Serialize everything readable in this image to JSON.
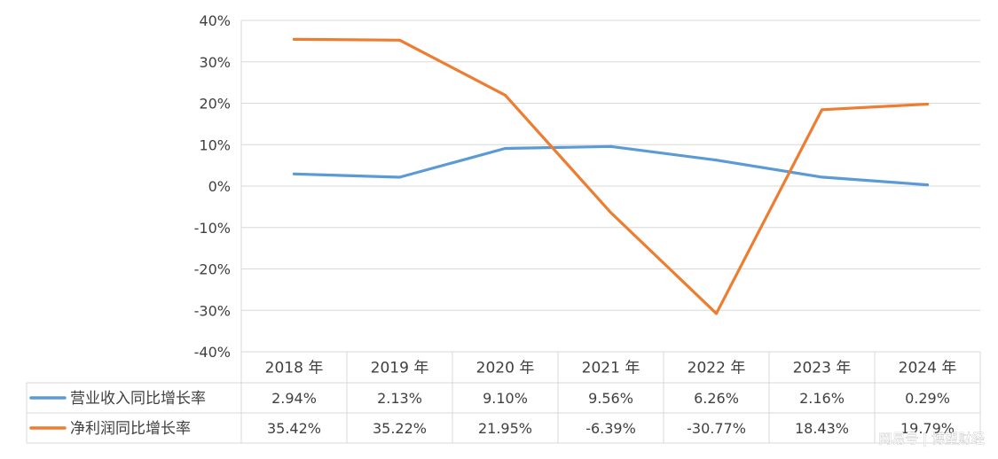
{
  "chart_data": {
    "type": "line",
    "title": "",
    "xlabel": "",
    "ylabel": "",
    "categories": [
      "2018 年",
      "2019 年",
      "2020 年",
      "2021 年",
      "2022 年",
      "2023 年",
      "2024 年"
    ],
    "series": [
      {
        "name": "营业收入同比增长率",
        "color": "#5b9bd5",
        "values": [
          2.94,
          2.13,
          9.1,
          9.56,
          6.26,
          2.16,
          0.29
        ],
        "labels": [
          "2.94%",
          "2.13%",
          "9.10%",
          "9.56%",
          "6.26%",
          "2.16%",
          "0.29%"
        ]
      },
      {
        "name": "净利润同比增长率",
        "color": "#ed7d31",
        "values": [
          35.42,
          35.22,
          21.95,
          -6.39,
          -30.77,
          18.43,
          19.79
        ],
        "labels": [
          "35.42%",
          "35.22%",
          "21.95%",
          "-6.39%",
          "-30.77%",
          "18.43%",
          "19.79%"
        ]
      }
    ],
    "ylim": [
      -40,
      40
    ],
    "yticks": [
      40,
      30,
      20,
      10,
      0,
      -10,
      -20,
      -30,
      -40
    ],
    "ytick_labels": [
      "40%",
      "30%",
      "20%",
      "10%",
      "0%",
      "-10%",
      "-20%",
      "-30%",
      "-40%"
    ],
    "grid": true,
    "legend": "data-table",
    "watermark": "网易号 | 博望财经"
  }
}
